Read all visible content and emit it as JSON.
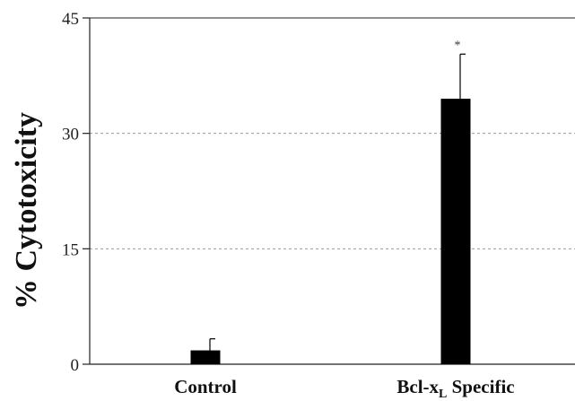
{
  "chart_data": {
    "type": "bar",
    "ylabel": "% Cytotoxicity",
    "xlabel": "",
    "ylim": [
      0,
      45
    ],
    "yticks": [
      0,
      15,
      30,
      45
    ],
    "grid": "horizontal dotted at 15 and 30",
    "categories": [
      "Control",
      "Bcl-x"
    ],
    "category_subscripts": [
      "",
      "L"
    ],
    "category_suffixes": [
      "",
      " Specific"
    ],
    "values": [
      1.8,
      34.5
    ],
    "errors": [
      1.5,
      5.8
    ],
    "significance": [
      "",
      "*"
    ],
    "bar_color": "#000000"
  }
}
